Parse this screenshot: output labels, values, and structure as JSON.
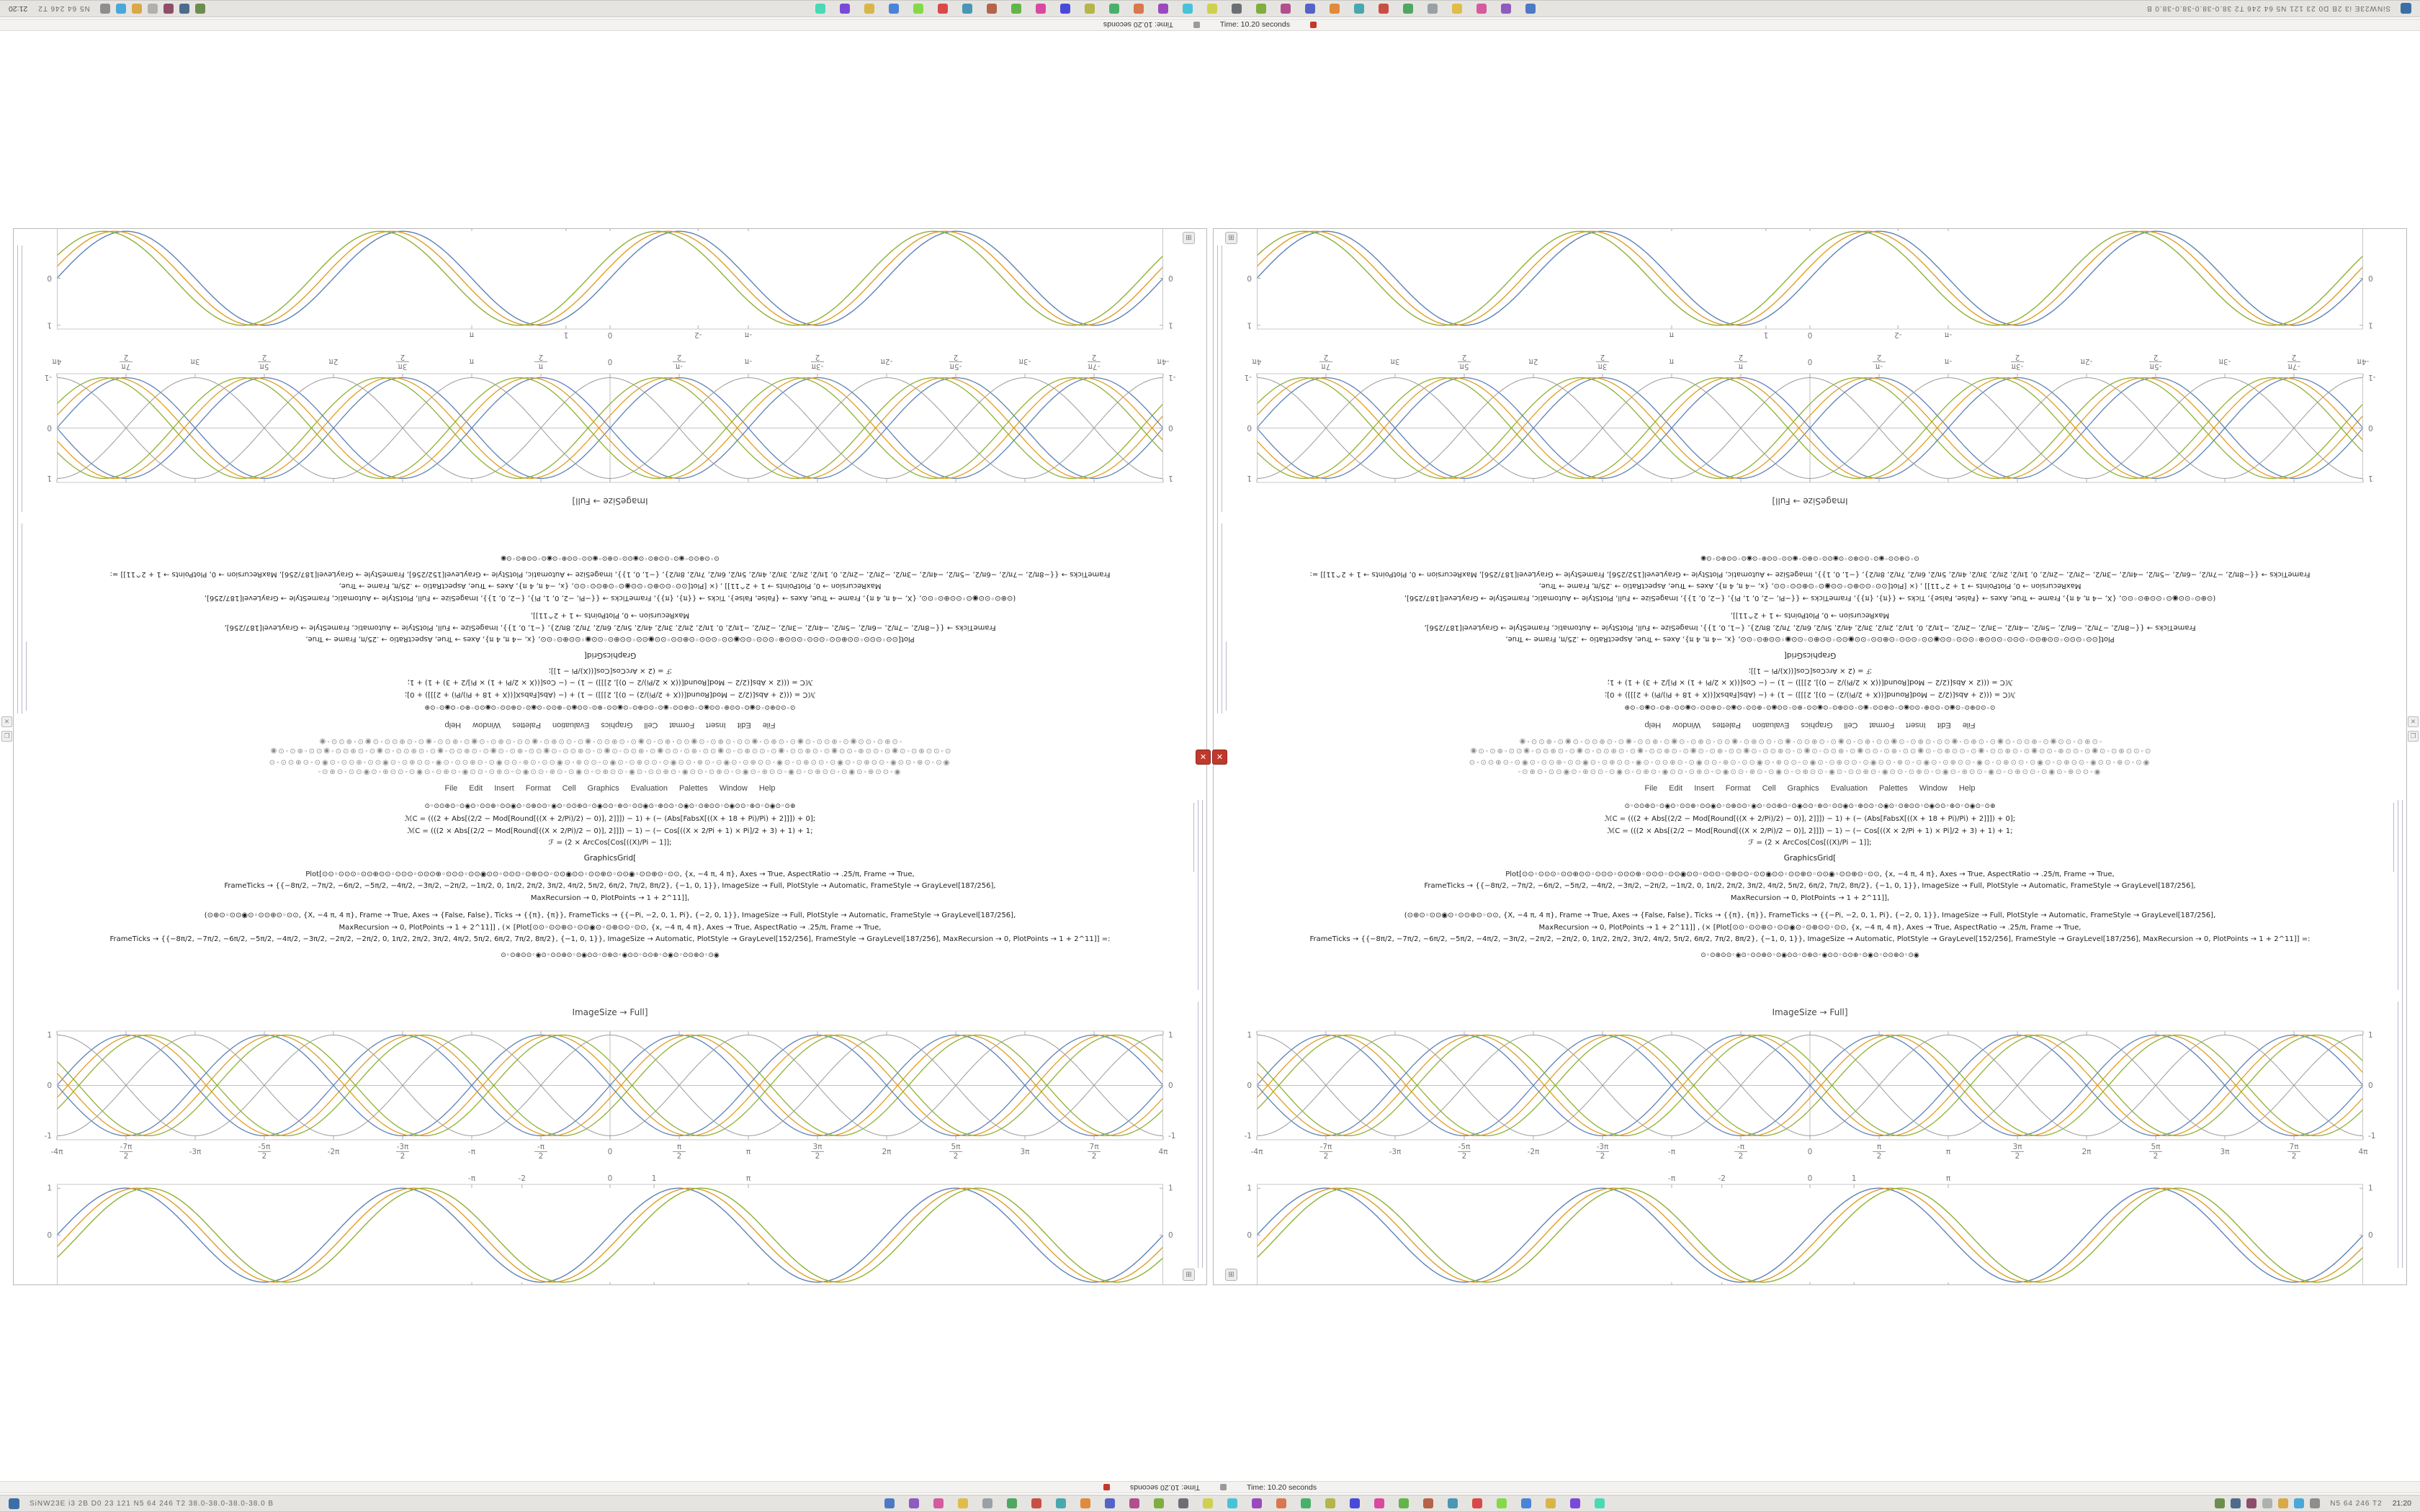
{
  "taskbar": {
    "status_left": "SiNW23E i3 2B D0 23 121 N5 64 246 T2 38.0-38.0-38.0-38.0 B",
    "tray_text": "N5 64 246 T2",
    "clock": "21:20",
    "center_icons": [
      "#4e79c4",
      "#8e5bbf",
      "#d45b9e",
      "#e0bd4a",
      "#9aa0a6",
      "#50a763",
      "#c94f44",
      "#47a8b0",
      "#e08a3c",
      "#5563c9",
      "#b04f8e",
      "#7fae3f",
      "#6b6f75",
      "#cfd04e",
      "#49c2d9",
      "#9c49bf",
      "#d9774e",
      "#49b06b",
      "#b5b549",
      "#4949d9",
      "#d949a0",
      "#63b549",
      "#b56349",
      "#4996b5",
      "#d94949",
      "#84d949",
      "#4984d9",
      "#d9b549",
      "#7b49d9",
      "#49d9b5"
    ],
    "tray_icons": [
      "#6b8e4e",
      "#4e6b8e",
      "#8e4e6b",
      "#b0b0b0",
      "#d9a849",
      "#49a8d9",
      "#8e8e8e"
    ]
  },
  "title_bar": {
    "text": "Time: 10.20 seconds"
  },
  "window_controls": {
    "close_glyph": "✕",
    "dock_glyph": "⊞",
    "edge_close": "✕",
    "edge_restore": "❐"
  },
  "colors": {
    "curve_blue": "#5e81b5",
    "curve_gold": "#e19c24",
    "curve_green": "#8fb032",
    "curve_gray": "#9a9a9a",
    "frame_gray": "#c8c8c8",
    "abort_red": "#c0392b"
  },
  "window": {
    "menu_items": [
      "File",
      "Edit",
      "Insert",
      "Format",
      "Cell",
      "Graphics",
      "Evaluation",
      "Palettes",
      "Window",
      "Help"
    ],
    "icon_rows": [
      "⊙◦⊙⊙⊕⊙◦⊙◉⊙◦⊙⊙⊕◦⊙⊙◉⊙◦⊙⊕⊙⊙◦◉⊙◦⊙⊙⊕⊙◦⊙◉⊙⊙◦⊕⊙◦⊙⊙◉⊙◦⊕⊙⊙◦⊙◉⊙◦⊙⊕⊙⊙◦⊙◉⊙⊙◦⊕⊙◦⊙◉⊙◦⊙⊕⊙⊙◦◉⊙◦⊙⊕⊙⊙◦⊙◉⊙◦⊙⊕⊙⊙◦◉⊙⊙◦⊕⊙◦⊙◉",
      "◦⊙⊕⊙◦⊙⊙◉⊙◦⊕⊙⊙◦⊙◉⊙◦⊙⊕⊙◦◉⊙⊙◦⊙⊕⊙◦⊙◉⊙⊙◦⊕⊙◦⊙◉⊙◦⊙⊕⊙⊙◦◉⊙◦⊙⊙⊕⊙◦◉⊙⊙◦⊙⊕⊙◦⊙◉⊙◦⊕⊙⊙◦◉⊙◦⊙⊕⊙⊙◦⊙◉⊙◦⊕⊙⊙◦◉"
    ],
    "caption": "ImageSize → Full]",
    "code_lines": [
      {
        "t": "⊙◦⊙⊙⊕⊙◦⊙◉⊙◦⊙⊙⊕◦⊙⊙◉⊙◦⊙⊕⊙⊙◦◉⊙◦⊙⊙⊕⊙◦⊙◉⊙⊙◦⊕⊙◦⊙⊙◉⊙◦⊕⊙⊙◦⊙◉⊙◦⊙⊕⊙⊙◦⊙◉⊙⊙◦⊕⊙◦⊙◉⊙◦⊙⊕",
        "s": 9,
        "mt": 0
      },
      {
        "t": "ℳC = (((2 + Abs[(2/2 − Mod[Round[((X + 2/Pi)/2) − 0)], 2]]]) − 1) + (− (Abs[FabsX[((X + 18 + Pi)/Pi) + 2]]]) + 0];",
        "s": 10,
        "mt": 6
      },
      {
        "t": "ℳC = (((2 × Abs[(2/2 − Mod[Round[((X × 2/Pi)/2 − 0)], 2]]]) − 1) − (− Cos[((X × 2/Pi + 1) × Pi]/2 + 3) + 1) + 1;",
        "s": 10,
        "mt": 4
      },
      {
        "t": "ℱ = (2 × ArcCos[Cos[((X)/Pi − 1]];",
        "s": 10,
        "mt": 4
      },
      {
        "t": "GraphicsGrid[",
        "s": 10.5,
        "mt": 8
      },
      {
        "t": "Plot[⊙⊙◦⊙⊙⊙◦⊙⊙⊕⊙⊙◦⊙⊙⊙◦⊙⊙⊙⊕◦⊙⊙⊙◦⊙⊙◉⊙⊙◦⊙⊙⊙◦⊙⊕⊙⊙◦⊙⊙◉⊙⊙◦⊙⊙⊕⊙◦⊙⊙◉◦⊙⊙⊕⊙◦⊙⊙, {x, −4 π, 4 π}, Axes → True, AspectRatio → .25/π, Frame → True,",
        "s": 10,
        "mt": 10
      },
      {
        "t": "FrameTicks → {{−8π/2, −7π/2, −6π/2, −5π/2, −4π/2, −3π/2, −2π/2, −1π/2, 0, 1π/2, 2π/2, 3π/2, 4π/2, 5π/2, 6π/2, 7π/2, 8π/2}, {−1, 0, 1}}, ImageSize → Full, PlotStyle → Automatic, FrameStyle → GrayLevel[187/256],",
        "s": 10,
        "mt": 4
      },
      {
        "t": "MaxRecursion → 0, PlotPoints → 1 + 2^11]],",
        "s": 10,
        "mt": 4
      },
      {
        "t": "(⊙⊕⊙◦⊙⊙◉⊙◦⊙⊙⊕⊙◦⊙⊙, {X, −4 π, 4 π}, Frame → True, Axes → {False, False}, Ticks → {{π}, {π}}, FrameTicks → {{−Pi, −2, 0, 1, Pi}, {−2, 0, 1}}, ImageSize → Full, PlotStyle → Automatic, FrameStyle → GrayLevel[187/256],",
        "s": 10,
        "mt": 12
      },
      {
        "t": "MaxRecursion → 0, PlotPoints → 1 + 2^11]] , (× [Plot[⊙⊙◦⊙⊙⊕⊙◦⊙⊙◉⊙◦⊙⊕⊙⊙◦⊙⊙, {x, −4 π, 4 π}, Axes → True, AspectRatio → .25/π, Frame → True,",
        "s": 10,
        "mt": 4
      },
      {
        "t": "FrameTicks → {{−8π/2, −7π/2, −6π/2, −5π/2, −4π/2, −3π/2, −2π/2, −2π/2, 0, 1π/2, 2π/2, 3π/2, 4π/2, 5π/2, 6π/2, 7π/2, 8π/2}, {−1, 0, 1}}, ImageSize → Automatic, PlotStyle → GrayLevel[152/256], FrameStyle → GrayLevel[187/256], MaxRecursion → 0, PlotPoints → 1 + 2^11]] =:",
        "s": 10,
        "mt": 4
      },
      {
        "t": "⊙◦⊙⊕⊙⊙◦◉⊙◦⊙⊙⊕⊙◦⊙◉⊙⊙◦⊙⊕⊙◦◉⊙⊙◦⊙⊙⊕◦⊙◉⊙◦⊙⊙⊕⊙◦⊙◉",
        "s": 9,
        "mt": 10
      }
    ]
  },
  "chart_data": {
    "simple": {
      "type": "line",
      "title": "",
      "xlabel": "",
      "ylabel": "",
      "xlim": [
        -12.566,
        12.566
      ],
      "ylim": [
        -1.08,
        1.08
      ],
      "tick_label_pos": "above",
      "axes": false,
      "frame": true,
      "frame_color": "#c8c8c8",
      "x_ticks": [
        {
          "v": -3.1416,
          "l": "-π"
        },
        {
          "v": -2,
          "l": "-2"
        },
        {
          "v": 0,
          "l": "0"
        },
        {
          "v": 1,
          "l": "1"
        },
        {
          "v": 3.1416,
          "l": "π"
        }
      ],
      "y_ticks": [
        {
          "v": -2,
          "l": "-2"
        },
        {
          "v": 0,
          "l": "0"
        },
        {
          "v": 1,
          "l": "1"
        }
      ],
      "series": [
        {
          "name": "sin(x)",
          "color": "#5e81b5",
          "phase": 0,
          "sign": 1,
          "width": 1.4
        },
        {
          "name": "sin(x − 1/4)",
          "color": "#e19c24",
          "phase": 0.25,
          "sign": 1,
          "width": 1.4
        },
        {
          "name": "sin(x − 1/2)",
          "color": "#8fb032",
          "phase": 0.5,
          "sign": 1,
          "width": 1.4
        }
      ]
    },
    "braid": {
      "type": "line",
      "title": "",
      "xlabel": "",
      "ylabel": "",
      "xlim": [
        -12.566,
        12.566
      ],
      "ylim": [
        -1.08,
        1.08
      ],
      "tick_label_pos": "below",
      "axes": true,
      "frame": true,
      "frame_color": "#c8c8c8",
      "x_ticks": [
        {
          "v": -12.566,
          "l": "-4π"
        },
        {
          "v": -10.996,
          "l": "-7π/2"
        },
        {
          "v": -9.4248,
          "l": "-3π"
        },
        {
          "v": -7.854,
          "l": "-5π/2"
        },
        {
          "v": -6.2832,
          "l": "-2π"
        },
        {
          "v": -4.7124,
          "l": "-3π/2"
        },
        {
          "v": -3.1416,
          "l": "-π"
        },
        {
          "v": -1.5708,
          "l": "-π/2"
        },
        {
          "v": 0,
          "l": "0"
        },
        {
          "v": 1.5708,
          "l": "π/2"
        },
        {
          "v": 3.1416,
          "l": "π"
        },
        {
          "v": 4.7124,
          "l": "3π/2"
        },
        {
          "v": 6.2832,
          "l": "2π"
        },
        {
          "v": 7.854,
          "l": "5π/2"
        },
        {
          "v": 9.4248,
          "l": "3π"
        },
        {
          "v": 10.996,
          "l": "7π/2"
        },
        {
          "v": 12.566,
          "l": "4π"
        }
      ],
      "y_ticks": [
        {
          "v": -1,
          "l": "-1"
        },
        {
          "v": 0,
          "l": "0"
        },
        {
          "v": 1,
          "l": "1"
        }
      ],
      "series": [
        {
          "name": "sin(x)",
          "color": "#5e81b5",
          "phase": 0,
          "sign": 1,
          "width": 1.3
        },
        {
          "name": "sin(x − 1/4)",
          "color": "#e19c24",
          "phase": 0.25,
          "sign": 1,
          "width": 1.3
        },
        {
          "name": "sin(x − 1/2)",
          "color": "#8fb032",
          "phase": 0.5,
          "sign": 1,
          "width": 1.3
        },
        {
          "name": "−sin(x)",
          "color": "#5e81b5",
          "phase": 0,
          "sign": -1,
          "width": 1.3
        },
        {
          "name": "−sin(x − 1/4)",
          "color": "#e19c24",
          "phase": 0.25,
          "sign": -1,
          "width": 1.3
        },
        {
          "name": "−sin(x − 1/2)",
          "color": "#8fb032",
          "phase": 0.5,
          "sign": -1,
          "width": 1.3
        },
        {
          "name": "cos(x)",
          "color": "#9a9a9a",
          "phase": -1.5708,
          "sign": 1,
          "width": 1
        },
        {
          "name": "−cos(x)",
          "color": "#9a9a9a",
          "phase": -1.5708,
          "sign": -1,
          "width": 1
        }
      ]
    }
  }
}
